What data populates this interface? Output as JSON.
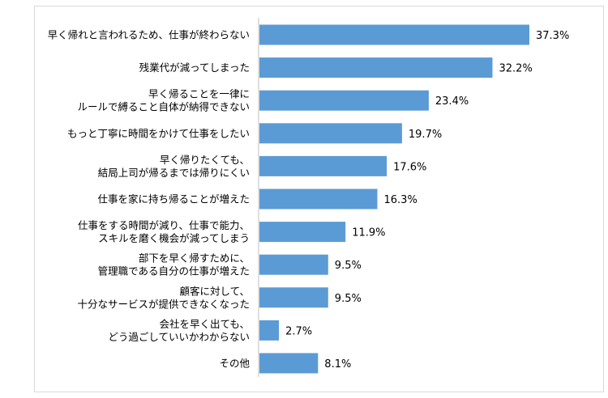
{
  "chart_data": {
    "type": "bar",
    "orientation": "horizontal",
    "title": "",
    "xlabel": "",
    "ylabel": "",
    "xlim": [
      0,
      37.3
    ],
    "grid": false,
    "legend": "none",
    "bar_color": "#5b9bd5",
    "value_suffix": "%",
    "categories": [
      [
        "早く帰れと言われるため、仕事が終わらない"
      ],
      [
        "残業代が減ってしまった"
      ],
      [
        "早く帰ることを一律に",
        "ルールで縛ること自体が納得できない"
      ],
      [
        "もっと丁寧に時間をかけて仕事をしたい"
      ],
      [
        "早く帰りたくても、",
        "結局上司が帰るまでは帰りにくい"
      ],
      [
        "仕事を家に持ち帰ることが増えた"
      ],
      [
        "仕事をする時間が減り、仕事で能力、",
        "スキルを磨く機会が減ってしまう"
      ],
      [
        "部下を早く帰すために、",
        "管理職である自分の仕事が増えた"
      ],
      [
        "顧客に対して、",
        "十分なサービスが提供できなくなった"
      ],
      [
        "会社を早く出ても、",
        "どう過ごしていいかわからない"
      ],
      [
        "その他"
      ]
    ],
    "values": [
      37.3,
      32.2,
      23.4,
      19.7,
      17.6,
      16.3,
      11.9,
      9.5,
      9.5,
      2.7,
      8.1
    ],
    "value_labels": [
      "37.3%",
      "32.2%",
      "23.4%",
      "19.7%",
      "17.6%",
      "16.3%",
      "11.9%",
      "9.5%",
      "9.5%",
      "2.7%",
      "8.1%"
    ]
  }
}
